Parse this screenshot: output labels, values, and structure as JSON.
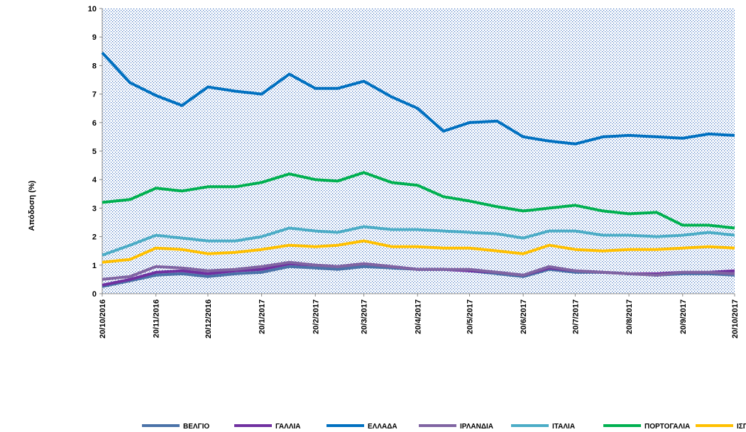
{
  "chart_data": {
    "type": "line",
    "y_label": "Απόδοση (%)",
    "x": [
      "20/10/2016",
      "05/11/2016",
      "20/11/2016",
      "05/12/2016",
      "20/12/2016",
      "05/01/2017",
      "20/01/2017",
      "05/02/2017",
      "20/02/2017",
      "05/03/2017",
      "20/03/2017",
      "05/04/2017",
      "20/04/2017",
      "05/05/2017",
      "20/05/2017",
      "05/06/2017",
      "20/06/2017",
      "05/07/2017",
      "20/07/2017",
      "05/08/2017",
      "20/08/2017",
      "05/09/2017",
      "20/09/2017",
      "05/10/2017",
      "20/10/2017"
    ],
    "xlim": [
      "20/10/2016",
      "20/10/2017"
    ],
    "xticks": [
      "20/10/2016",
      "20/11/2016",
      "20/12/2016",
      "20/1/2017",
      "20/2/2017",
      "20/3/2017",
      "20/4/2017",
      "20/5/2017",
      "20/6/2017",
      "20/7/2017",
      "20/8/2017",
      "20/9/2017",
      "20/10/2017"
    ],
    "ylim": [
      0,
      10
    ],
    "yticks": [
      0,
      1,
      2,
      3,
      4,
      5,
      6,
      7,
      8,
      9,
      10
    ],
    "series": [
      {
        "name": "ΒΕΛΓΙΟ",
        "color": "#4a72a8",
        "values": [
          0.25,
          0.45,
          0.65,
          0.7,
          0.6,
          0.7,
          0.75,
          0.95,
          0.9,
          0.85,
          0.95,
          0.9,
          0.85,
          0.85,
          0.8,
          0.7,
          0.6,
          0.85,
          0.75,
          0.75,
          0.7,
          0.65,
          0.7,
          0.7,
          0.65
        ]
      },
      {
        "name": "ΓΑΛΛΙΑ",
        "color": "#7030a0",
        "values": [
          0.3,
          0.5,
          0.75,
          0.8,
          0.7,
          0.8,
          0.85,
          1.05,
          1.0,
          0.95,
          1.05,
          0.95,
          0.85,
          0.85,
          0.8,
          0.75,
          0.65,
          0.9,
          0.8,
          0.75,
          0.7,
          0.7,
          0.75,
          0.75,
          0.8
        ]
      },
      {
        "name": "ΕΛΛΑΔΑ",
        "color": "#0070c0",
        "values": [
          8.45,
          7.4,
          6.95,
          6.6,
          7.25,
          7.1,
          7.0,
          7.7,
          7.2,
          7.2,
          7.45,
          6.9,
          6.5,
          5.7,
          6.0,
          6.05,
          5.5,
          5.35,
          5.25,
          5.5,
          5.55,
          5.5,
          5.45,
          5.6,
          5.55
        ]
      },
      {
        "name": "ΙΡΛΑΝΔΙΑ",
        "color": "#8064a2",
        "values": [
          0.5,
          0.6,
          0.95,
          0.9,
          0.8,
          0.85,
          0.95,
          1.1,
          1.0,
          0.95,
          1.05,
          0.95,
          0.85,
          0.85,
          0.85,
          0.75,
          0.65,
          0.95,
          0.8,
          0.75,
          0.7,
          0.65,
          0.75,
          0.75,
          0.7
        ]
      },
      {
        "name": "ΙΤΑΛΙΑ",
        "color": "#4bacc6",
        "values": [
          1.35,
          1.7,
          2.05,
          1.95,
          1.85,
          1.85,
          2.0,
          2.3,
          2.2,
          2.15,
          2.35,
          2.25,
          2.25,
          2.2,
          2.15,
          2.1,
          1.95,
          2.2,
          2.2,
          2.05,
          2.05,
          2.0,
          2.05,
          2.15,
          2.05
        ]
      },
      {
        "name": "ΠΟΡΤΟΓΑΛΙΑ",
        "color": "#00b050",
        "values": [
          3.2,
          3.3,
          3.7,
          3.6,
          3.75,
          3.75,
          3.9,
          4.2,
          4.0,
          3.95,
          4.25,
          3.9,
          3.8,
          3.4,
          3.25,
          3.05,
          2.9,
          3.0,
          3.1,
          2.9,
          2.8,
          2.85,
          2.4,
          2.4,
          2.3
        ]
      },
      {
        "name": "ΙΣΠΑΝΙΑ",
        "color": "#ffc000",
        "values": [
          1.1,
          1.2,
          1.6,
          1.55,
          1.4,
          1.45,
          1.55,
          1.7,
          1.65,
          1.7,
          1.85,
          1.65,
          1.65,
          1.6,
          1.6,
          1.5,
          1.4,
          1.7,
          1.55,
          1.5,
          1.55,
          1.55,
          1.6,
          1.65,
          1.6
        ]
      }
    ]
  }
}
